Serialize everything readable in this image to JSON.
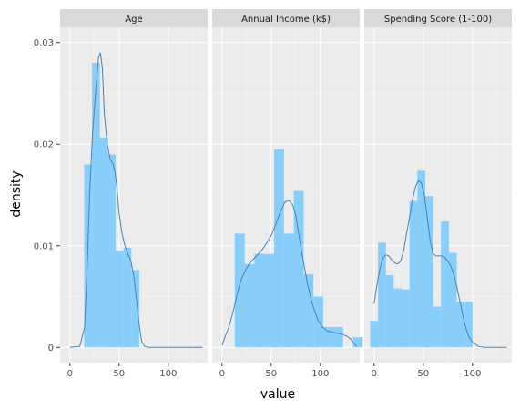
{
  "chart_data": {
    "type": "histogram-facet",
    "xlabel": "value",
    "ylabel": "density",
    "xlim": [
      -10,
      140
    ],
    "ylim": [
      -0.0015,
      0.0315
    ],
    "x_ticks": [
      0,
      50,
      100
    ],
    "y_ticks": [
      0,
      0.01,
      0.02,
      0.03
    ],
    "y_tick_labels": [
      "0",
      "0.01",
      "0.02",
      "0.03"
    ],
    "grid": true,
    "bar_color": "#87cefa",
    "density_color": "#4682b4",
    "panel_bg": "#ebebeb",
    "strip_bg": "#d9d9d9",
    "facets": [
      {
        "title": "Age",
        "bins": [
          {
            "x0": 14.5,
            "x1": 22.5,
            "density": 0.018
          },
          {
            "x0": 22.5,
            "x1": 30.5,
            "density": 0.028
          },
          {
            "x0": 30.5,
            "x1": 38.5,
            "density": 0.0206
          },
          {
            "x0": 38.5,
            "x1": 46.5,
            "density": 0.019
          },
          {
            "x0": 46.5,
            "x1": 54.5,
            "density": 0.0095
          },
          {
            "x0": 54.5,
            "x1": 62.5,
            "density": 0.0098
          },
          {
            "x0": 62.5,
            "x1": 70.5,
            "density": 0.0076
          },
          {
            "x0": 70.5,
            "x1": 78.5,
            "density": 0.0
          }
        ],
        "density": [
          [
            0,
            0
          ],
          [
            10,
            0.0001
          ],
          [
            15,
            0.002
          ],
          [
            18,
            0.009
          ],
          [
            20,
            0.015
          ],
          [
            23,
            0.021
          ],
          [
            26,
            0.025
          ],
          [
            29,
            0.0285
          ],
          [
            31,
            0.029
          ],
          [
            33,
            0.0275
          ],
          [
            35,
            0.023
          ],
          [
            38,
            0.02
          ],
          [
            41,
            0.0185
          ],
          [
            44,
            0.018
          ],
          [
            46,
            0.0172
          ],
          [
            48,
            0.0155
          ],
          [
            50,
            0.0132
          ],
          [
            53,
            0.0112
          ],
          [
            56,
            0.01
          ],
          [
            59,
            0.0092
          ],
          [
            62,
            0.0085
          ],
          [
            65,
            0.007
          ],
          [
            68,
            0.0045
          ],
          [
            70,
            0.0025
          ],
          [
            73,
            0.0006
          ],
          [
            76,
            0.0001
          ],
          [
            80,
            0
          ],
          [
            100,
            0
          ],
          [
            135,
            0
          ]
        ]
      },
      {
        "title": "Annual Income (k$)",
        "bins": [
          {
            "x0": 13,
            "x1": 23,
            "density": 0.0112
          },
          {
            "x0": 23,
            "x1": 33,
            "density": 0.0082
          },
          {
            "x0": 33,
            "x1": 43,
            "density": 0.0092
          },
          {
            "x0": 43,
            "x1": 53,
            "density": 0.0092
          },
          {
            "x0": 53,
            "x1": 63,
            "density": 0.0195
          },
          {
            "x0": 63,
            "x1": 73,
            "density": 0.0112
          },
          {
            "x0": 73,
            "x1": 83,
            "density": 0.0154
          },
          {
            "x0": 83,
            "x1": 93,
            "density": 0.0072
          },
          {
            "x0": 93,
            "x1": 103,
            "density": 0.005
          },
          {
            "x0": 103,
            "x1": 113,
            "density": 0.002
          },
          {
            "x0": 113,
            "x1": 123,
            "density": 0.002
          },
          {
            "x0": 123,
            "x1": 133,
            "density": 0.0
          },
          {
            "x0": 133,
            "x1": 143,
            "density": 0.001
          }
        ],
        "density": [
          [
            0,
            0.0002
          ],
          [
            3,
            0.001
          ],
          [
            7,
            0.002
          ],
          [
            12,
            0.0038
          ],
          [
            16,
            0.0055
          ],
          [
            20,
            0.0068
          ],
          [
            25,
            0.0078
          ],
          [
            30,
            0.0085
          ],
          [
            35,
            0.009
          ],
          [
            40,
            0.0095
          ],
          [
            45,
            0.0102
          ],
          [
            50,
            0.011
          ],
          [
            55,
            0.0122
          ],
          [
            60,
            0.0135
          ],
          [
            64,
            0.0143
          ],
          [
            68,
            0.0145
          ],
          [
            72,
            0.014
          ],
          [
            75,
            0.013
          ],
          [
            78,
            0.0112
          ],
          [
            82,
            0.0088
          ],
          [
            87,
            0.0062
          ],
          [
            92,
            0.0042
          ],
          [
            97,
            0.0028
          ],
          [
            102,
            0.002
          ],
          [
            107,
            0.0016
          ],
          [
            112,
            0.0015
          ],
          [
            117,
            0.0014
          ],
          [
            122,
            0.0013
          ],
          [
            127,
            0.0011
          ],
          [
            131,
            0.0008
          ],
          [
            135,
            0.0003
          ],
          [
            137,
            0.0001
          ]
        ]
      },
      {
        "title": "Spending Score (1-100)",
        "bins": [
          {
            "x0": -4,
            "x1": 4,
            "density": 0.0026
          },
          {
            "x0": 4,
            "x1": 12,
            "density": 0.0103
          },
          {
            "x0": 12,
            "x1": 20,
            "density": 0.0071
          },
          {
            "x0": 20,
            "x1": 28,
            "density": 0.0058
          },
          {
            "x0": 28,
            "x1": 36,
            "density": 0.0057
          },
          {
            "x0": 36,
            "x1": 44,
            "density": 0.0144
          },
          {
            "x0": 44,
            "x1": 52,
            "density": 0.0174
          },
          {
            "x0": 52,
            "x1": 60,
            "density": 0.0149
          },
          {
            "x0": 60,
            "x1": 68,
            "density": 0.004
          },
          {
            "x0": 68,
            "x1": 76,
            "density": 0.0124
          },
          {
            "x0": 76,
            "x1": 84,
            "density": 0.0093
          },
          {
            "x0": 84,
            "x1": 92,
            "density": 0.0045
          },
          {
            "x0": 92,
            "x1": 100,
            "density": 0.0045
          }
        ],
        "density": [
          [
            0,
            0.0043
          ],
          [
            3,
            0.0062
          ],
          [
            6,
            0.0078
          ],
          [
            9,
            0.0088
          ],
          [
            12,
            0.0091
          ],
          [
            15,
            0.009
          ],
          [
            18,
            0.0086
          ],
          [
            21,
            0.0083
          ],
          [
            24,
            0.0082
          ],
          [
            27,
            0.0085
          ],
          [
            30,
            0.0095
          ],
          [
            33,
            0.0112
          ],
          [
            36,
            0.0128
          ],
          [
            39,
            0.0145
          ],
          [
            42,
            0.0158
          ],
          [
            45,
            0.0164
          ],
          [
            48,
            0.0162
          ],
          [
            51,
            0.015
          ],
          [
            54,
            0.0128
          ],
          [
            57,
            0.0105
          ],
          [
            60,
            0.0092
          ],
          [
            63,
            0.009
          ],
          [
            66,
            0.009
          ],
          [
            69,
            0.009
          ],
          [
            72,
            0.0088
          ],
          [
            75,
            0.0085
          ],
          [
            78,
            0.008
          ],
          [
            81,
            0.0072
          ],
          [
            84,
            0.006
          ],
          [
            87,
            0.0046
          ],
          [
            90,
            0.0032
          ],
          [
            93,
            0.002
          ],
          [
            96,
            0.0011
          ],
          [
            100,
            0.0005
          ],
          [
            106,
            0.0001
          ],
          [
            112,
            0
          ],
          [
            120,
            0
          ],
          [
            135,
            0
          ]
        ]
      }
    ]
  }
}
